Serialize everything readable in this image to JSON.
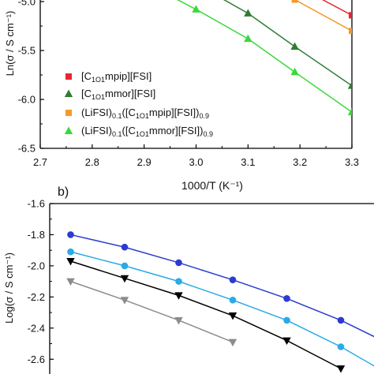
{
  "chart_data": [
    {
      "type": "line",
      "panel_label": "",
      "xlabel": "1000/T (K⁻¹)",
      "ylabel": "Ln(σ / S cm⁻¹)",
      "xlim": [
        2.7,
        3.3
      ],
      "ylim": [
        -6.5,
        -4.5
      ],
      "x_ticks": [
        "2.7",
        "2.8",
        "2.9",
        "3.0",
        "3.1",
        "3.2",
        "3.3"
      ],
      "y_ticks": [
        "-5.0",
        "-5.5",
        "-6.0",
        "-6.5"
      ],
      "legend_position": "bottom-left",
      "series": [
        {
          "name": "[C1O1mpip][FSI]",
          "legend_label": [
            "[C",
            "1O1",
            "mpip][FSI]"
          ],
          "color": "#e8262f",
          "marker": "square",
          "x": [
            2.98,
            3.19,
            3.3
          ],
          "y": [
            -4.6,
            -4.83,
            -5.14
          ]
        },
        {
          "name": "[C1O1mmor][FSI]",
          "legend_label": [
            "[C",
            "1O1",
            "mmor][FSI]"
          ],
          "color": "#2e7d32",
          "marker": "triangle",
          "x": [
            2.9,
            3.0,
            3.1,
            3.19,
            3.3
          ],
          "y": [
            -4.55,
            -4.82,
            -5.12,
            -5.46,
            -5.86
          ]
        },
        {
          "name": "(LiFSI)0.1([C1O1mpip][FSI])0.9",
          "legend_label": [
            "(LiFSI)",
            "0.1",
            "([C",
            "1O1",
            "mpip][FSI])",
            "0.9"
          ],
          "color": "#f39a2b",
          "marker": "square",
          "x": [
            3.0,
            3.19,
            3.3
          ],
          "y": [
            -4.68,
            -4.98,
            -5.3
          ]
        },
        {
          "name": "(LiFSI)0.1([C1O1mmor][FSI])0.9",
          "legend_label": [
            "(LiFSI)",
            "0.1",
            "([C",
            "1O1",
            "mmor][FSI])",
            "0.9"
          ],
          "color": "#39d93a",
          "marker": "triangle",
          "x": [
            2.8,
            2.91,
            3.0,
            3.1,
            3.19,
            3.3
          ],
          "y": [
            -4.55,
            -4.83,
            -5.08,
            -5.38,
            -5.72,
            -6.13
          ]
        }
      ]
    },
    {
      "type": "line",
      "panel_label": "b)",
      "xlabel": "",
      "ylabel": "Log(σ / S cm⁻¹)",
      "ylim": [
        -2.7,
        -1.6
      ],
      "y_ticks": [
        "-1.6",
        "-1.8",
        "-2.0",
        "-2.2",
        "-2.4",
        "-2.6"
      ],
      "xlim": [
        2.7,
        3.3
      ],
      "series": [
        {
          "color": "#2b3bd1",
          "marker": "circle",
          "x": [
            2.8,
            2.9,
            3.0,
            3.1,
            3.2,
            3.3,
            3.4
          ],
          "y": [
            -1.8,
            -1.88,
            -1.98,
            -2.09,
            -2.21,
            -2.35,
            -2.52
          ]
        },
        {
          "color": "#2aaae6",
          "marker": "circle",
          "x": [
            2.8,
            2.9,
            3.0,
            3.1,
            3.2,
            3.3,
            3.4
          ],
          "y": [
            -1.91,
            -2.0,
            -2.1,
            -2.22,
            -2.35,
            -2.52,
            -2.72
          ]
        },
        {
          "color": "#000000",
          "marker": "triangle-down",
          "x": [
            2.8,
            2.9,
            3.0,
            3.1,
            3.2,
            3.3
          ],
          "y": [
            -1.97,
            -2.08,
            -2.19,
            -2.32,
            -2.48,
            -2.66
          ]
        },
        {
          "color": "#8c8c8c",
          "marker": "triangle-down",
          "x": [
            2.8,
            2.9,
            3.0,
            3.1
          ],
          "y": [
            -2.1,
            -2.22,
            -2.35,
            -2.49
          ]
        }
      ]
    }
  ]
}
